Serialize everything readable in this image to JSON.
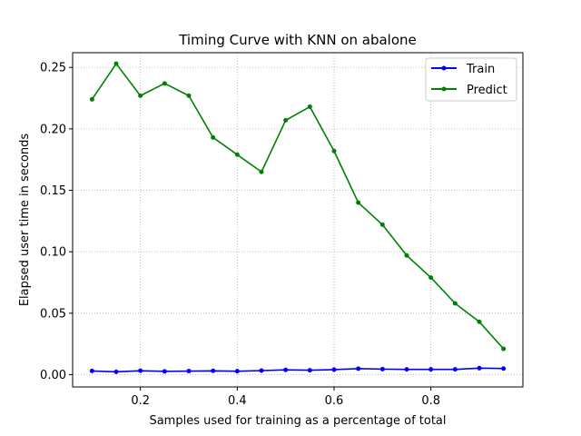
{
  "chart_data": {
    "type": "line",
    "title": "Timing Curve with KNN on abalone",
    "xlabel": "Samples used for training as a percentage of total",
    "ylabel": "Elapsed user time in seconds",
    "xlim": [
      0.06,
      0.99
    ],
    "ylim": [
      -0.01,
      0.262
    ],
    "xticks": [
      0.2,
      0.4,
      0.6,
      0.8
    ],
    "xtick_labels": [
      "0.2",
      "0.4",
      "0.6",
      "0.8"
    ],
    "yticks": [
      0.0,
      0.05,
      0.1,
      0.15,
      0.2,
      0.25
    ],
    "ytick_labels": [
      "0.00",
      "0.05",
      "0.10",
      "0.15",
      "0.20",
      "0.25"
    ],
    "grid": true,
    "legend_position": "top-right",
    "x": [
      0.1,
      0.15,
      0.2,
      0.25,
      0.3,
      0.35,
      0.4,
      0.45,
      0.5,
      0.55,
      0.6,
      0.65,
      0.7,
      0.75,
      0.8,
      0.85,
      0.9,
      0.95
    ],
    "series": [
      {
        "name": "Train",
        "color": "#0000ff",
        "values": [
          0.003,
          0.0023,
          0.0032,
          0.0027,
          0.0029,
          0.0031,
          0.0028,
          0.0033,
          0.0039,
          0.0036,
          0.0041,
          0.0049,
          0.0045,
          0.0043,
          0.0043,
          0.0043,
          0.0053,
          0.005
        ]
      },
      {
        "name": "Predict",
        "color": "#008000",
        "values": [
          0.224,
          0.253,
          0.227,
          0.237,
          0.227,
          0.193,
          0.179,
          0.165,
          0.207,
          0.218,
          0.182,
          0.14,
          0.122,
          0.097,
          0.079,
          0.058,
          0.043,
          0.021
        ]
      }
    ]
  }
}
